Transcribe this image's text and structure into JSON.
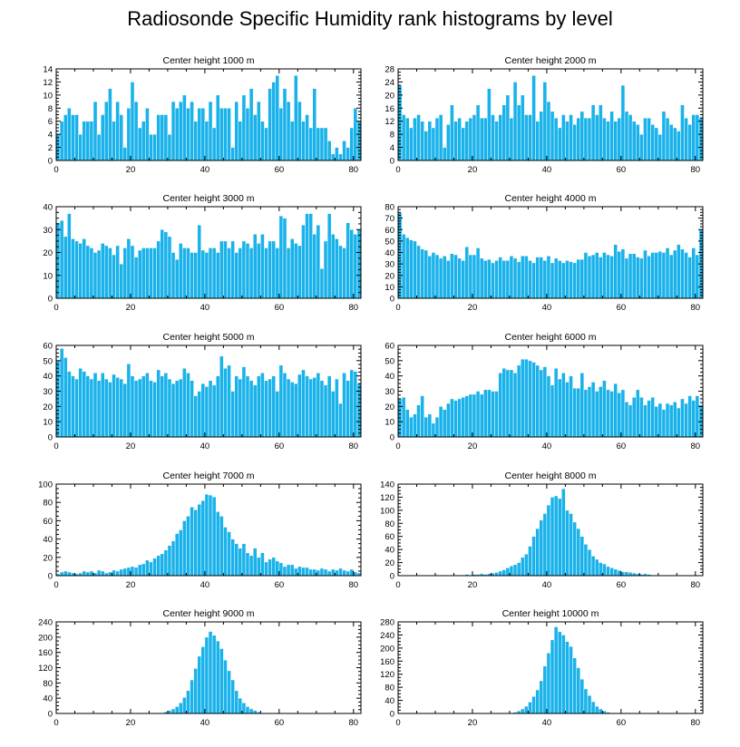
{
  "title": "Radiosonde Specific Humidity rank histograms by level",
  "colors": {
    "bar": "#1ab2ea",
    "bar_edge": "#ffffff",
    "axis": "#000000"
  },
  "chart_data": [
    {
      "type": "bar",
      "title": "Center height 1000 m",
      "xlim": [
        0,
        82
      ],
      "ylim": [
        0,
        14
      ],
      "x_ticks": [
        0,
        20,
        40,
        60,
        80
      ],
      "y_ticks": [
        0,
        2,
        4,
        6,
        8,
        10,
        12,
        14
      ],
      "values": [
        4,
        6,
        7,
        8,
        7,
        7,
        4,
        6,
        6,
        6,
        9,
        4,
        7,
        9,
        11,
        6,
        9,
        7,
        2,
        8,
        12,
        9,
        5,
        6,
        8,
        4,
        4,
        7,
        7,
        7,
        4,
        9,
        8,
        9,
        10,
        8,
        9,
        6,
        8,
        8,
        6,
        9,
        5,
        10,
        8,
        8,
        8,
        2,
        9,
        6,
        10,
        8,
        11,
        7,
        9,
        6,
        5,
        11,
        12,
        13,
        8,
        11,
        9,
        6,
        13,
        9,
        6,
        7,
        5,
        11,
        5,
        5,
        5,
        3,
        1,
        2,
        1,
        3,
        2,
        5,
        8,
        6
      ]
    },
    {
      "type": "bar",
      "title": "Center height 2000 m",
      "xlim": [
        0,
        82
      ],
      "ylim": [
        0,
        28
      ],
      "x_ticks": [
        0,
        20,
        40,
        60,
        80
      ],
      "y_ticks": [
        0,
        4,
        8,
        12,
        16,
        20,
        24,
        28
      ],
      "values": [
        23,
        14,
        13,
        10,
        13,
        14,
        12,
        9,
        12,
        10,
        13,
        14,
        4,
        11,
        17,
        12,
        13,
        10,
        12,
        13,
        14,
        17,
        13,
        13,
        22,
        14,
        12,
        14,
        17,
        20,
        13,
        24,
        17,
        20,
        14,
        14,
        26,
        12,
        15,
        24,
        18,
        15,
        13,
        10,
        14,
        12,
        14,
        11,
        13,
        15,
        13,
        13,
        17,
        14,
        17,
        13,
        12,
        15,
        12,
        13,
        23,
        15,
        14,
        12,
        11,
        8,
        13,
        13,
        11,
        10,
        8,
        15,
        13,
        11,
        10,
        9,
        17,
        13,
        11,
        14,
        14,
        13
      ]
    },
    {
      "type": "bar",
      "title": "Center height 3000 m",
      "xlim": [
        0,
        82
      ],
      "ylim": [
        0,
        40
      ],
      "x_ticks": [
        0,
        20,
        40,
        60,
        80
      ],
      "y_ticks": [
        0,
        10,
        20,
        30,
        40
      ],
      "values": [
        33,
        34,
        27,
        37,
        26,
        25,
        24,
        26,
        23,
        22,
        20,
        21,
        24,
        23,
        22,
        19,
        23,
        15,
        22,
        26,
        23,
        18,
        21,
        22,
        22,
        22,
        22,
        25,
        30,
        29,
        27,
        20,
        17,
        24,
        22,
        22,
        20,
        20,
        32,
        21,
        20,
        22,
        22,
        20,
        25,
        25,
        22,
        25,
        20,
        22,
        25,
        24,
        22,
        28,
        24,
        28,
        22,
        25,
        25,
        22,
        36,
        35,
        22,
        26,
        24,
        23,
        32,
        37,
        37,
        28,
        32,
        13,
        25,
        37,
        28,
        26,
        23,
        22,
        33,
        30,
        28,
        30
      ]
    },
    {
      "type": "bar",
      "title": "Center height 4000 m",
      "xlim": [
        0,
        82
      ],
      "ylim": [
        0,
        80
      ],
      "x_ticks": [
        0,
        20,
        40,
        60,
        80
      ],
      "y_ticks": [
        0,
        10,
        20,
        30,
        40,
        50,
        60,
        70,
        80
      ],
      "values": [
        75,
        56,
        53,
        51,
        50,
        46,
        43,
        42,
        37,
        40,
        38,
        35,
        37,
        33,
        39,
        38,
        35,
        33,
        45,
        38,
        38,
        44,
        35,
        33,
        34,
        31,
        33,
        36,
        33,
        33,
        37,
        35,
        32,
        37,
        37,
        33,
        31,
        36,
        36,
        33,
        37,
        31,
        35,
        33,
        31,
        33,
        32,
        31,
        34,
        34,
        40,
        37,
        38,
        40,
        36,
        40,
        38,
        37,
        47,
        41,
        43,
        35,
        39,
        39,
        36,
        35,
        42,
        37,
        40,
        40,
        41,
        40,
        44,
        38,
        42,
        47,
        43,
        40,
        36,
        44,
        38,
        60
      ]
    },
    {
      "type": "bar",
      "title": "Center height 5000 m",
      "xlim": [
        0,
        82
      ],
      "ylim": [
        0,
        60
      ],
      "x_ticks": [
        0,
        20,
        40,
        60,
        80
      ],
      "y_ticks": [
        0,
        10,
        20,
        30,
        40,
        50,
        60
      ],
      "values": [
        50,
        58,
        52,
        43,
        40,
        38,
        45,
        43,
        40,
        38,
        42,
        37,
        42,
        38,
        36,
        41,
        39,
        38,
        35,
        48,
        40,
        37,
        38,
        40,
        42,
        37,
        36,
        44,
        40,
        42,
        38,
        35,
        37,
        38,
        45,
        42,
        37,
        27,
        30,
        35,
        33,
        37,
        34,
        40,
        53,
        45,
        47,
        30,
        40,
        38,
        46,
        40,
        37,
        34,
        40,
        42,
        37,
        38,
        40,
        30,
        47,
        42,
        38,
        36,
        35,
        41,
        44,
        40,
        38,
        39,
        42,
        37,
        34,
        40,
        30,
        38,
        22,
        42,
        37,
        44,
        43,
        35
      ]
    },
    {
      "type": "bar",
      "title": "Center height 6000 m",
      "xlim": [
        0,
        82
      ],
      "ylim": [
        0,
        60
      ],
      "x_ticks": [
        0,
        20,
        40,
        60,
        80
      ],
      "y_ticks": [
        0,
        10,
        20,
        30,
        40,
        50,
        60
      ],
      "values": [
        25,
        26,
        18,
        13,
        15,
        21,
        27,
        13,
        15,
        9,
        13,
        20,
        18,
        22,
        25,
        24,
        25,
        26,
        27,
        28,
        28,
        30,
        28,
        31,
        31,
        30,
        30,
        42,
        45,
        44,
        44,
        42,
        47,
        51,
        51,
        50,
        49,
        47,
        44,
        46,
        40,
        34,
        45,
        38,
        42,
        36,
        40,
        32,
        32,
        42,
        31,
        33,
        36,
        30,
        33,
        37,
        31,
        30,
        35,
        29,
        31,
        23,
        21,
        26,
        31,
        26,
        21,
        24,
        26,
        20,
        22,
        18,
        22,
        21,
        23,
        19,
        25,
        22,
        27,
        24,
        27,
        21
      ]
    },
    {
      "type": "bar",
      "title": "Center height 7000 m",
      "xlim": [
        0,
        82
      ],
      "ylim": [
        0,
        100
      ],
      "x_ticks": [
        0,
        20,
        40,
        60,
        80
      ],
      "y_ticks": [
        0,
        20,
        40,
        60,
        80,
        100
      ],
      "values": [
        2,
        4,
        5,
        4,
        3,
        2,
        3,
        5,
        4,
        5,
        3,
        6,
        5,
        3,
        4,
        6,
        5,
        7,
        8,
        9,
        10,
        9,
        12,
        13,
        17,
        15,
        19,
        22,
        24,
        28,
        33,
        38,
        46,
        50,
        60,
        65,
        75,
        72,
        78,
        82,
        89,
        88,
        86,
        70,
        65,
        53,
        48,
        40,
        35,
        30,
        35,
        25,
        22,
        30,
        20,
        25,
        15,
        18,
        20,
        16,
        14,
        10,
        12,
        12,
        8,
        10,
        9,
        9,
        7,
        7,
        6,
        8,
        7,
        5,
        7,
        6,
        8,
        6,
        5,
        7,
        4,
        3
      ]
    },
    {
      "type": "bar",
      "title": "Center height 8000 m",
      "xlim": [
        0,
        82
      ],
      "ylim": [
        0,
        140
      ],
      "x_ticks": [
        0,
        20,
        40,
        60,
        80
      ],
      "y_ticks": [
        0,
        20,
        40,
        60,
        80,
        100,
        120,
        140
      ],
      "values": [
        0,
        0,
        0,
        0,
        0,
        0,
        0,
        0,
        0,
        0,
        0,
        0,
        0,
        0,
        1,
        0,
        1,
        1,
        2,
        1,
        2,
        2,
        3,
        2,
        3,
        4,
        5,
        7,
        9,
        12,
        15,
        17,
        20,
        28,
        33,
        45,
        60,
        72,
        85,
        95,
        108,
        120,
        122,
        118,
        133,
        100,
        95,
        82,
        72,
        60,
        48,
        40,
        30,
        25,
        20,
        18,
        14,
        12,
        10,
        8,
        6,
        6,
        5,
        4,
        3,
        2,
        3,
        2,
        1,
        1,
        1,
        1,
        0,
        1,
        0,
        0,
        0,
        0,
        0,
        0,
        0,
        0
      ]
    },
    {
      "type": "bar",
      "title": "Center height 9000 m",
      "xlim": [
        0,
        82
      ],
      "ylim": [
        0,
        240
      ],
      "x_ticks": [
        0,
        20,
        40,
        60,
        80
      ],
      "y_ticks": [
        0,
        40,
        80,
        120,
        160,
        200,
        240
      ],
      "values": [
        0,
        0,
        0,
        0,
        0,
        0,
        0,
        0,
        0,
        0,
        0,
        0,
        0,
        0,
        0,
        0,
        0,
        0,
        0,
        0,
        0,
        0,
        0,
        0,
        0,
        0,
        0,
        1,
        2,
        4,
        8,
        12,
        18,
        28,
        42,
        60,
        88,
        118,
        150,
        175,
        200,
        215,
        205,
        190,
        170,
        140,
        112,
        88,
        60,
        40,
        28,
        18,
        12,
        8,
        4,
        2,
        1,
        1,
        0,
        0,
        0,
        0,
        0,
        0,
        0,
        0,
        0,
        0,
        0,
        0,
        0,
        0,
        0,
        0,
        0,
        0,
        0,
        0,
        0,
        0,
        0,
        0
      ]
    },
    {
      "type": "bar",
      "title": "Center height 10000 m",
      "xlim": [
        0,
        82
      ],
      "ylim": [
        0,
        280
      ],
      "x_ticks": [
        0,
        20,
        40,
        60,
        80
      ],
      "y_ticks": [
        0,
        40,
        80,
        120,
        160,
        200,
        240,
        280
      ],
      "values": [
        0,
        0,
        0,
        0,
        0,
        0,
        0,
        0,
        0,
        0,
        0,
        0,
        0,
        0,
        0,
        0,
        0,
        0,
        0,
        0,
        0,
        0,
        0,
        0,
        0,
        0,
        0,
        0,
        0,
        1,
        2,
        4,
        8,
        14,
        22,
        35,
        52,
        72,
        100,
        145,
        185,
        225,
        265,
        250,
        240,
        220,
        205,
        170,
        140,
        105,
        75,
        55,
        36,
        22,
        14,
        8,
        4,
        2,
        1,
        1,
        0,
        0,
        0,
        0,
        0,
        0,
        0,
        0,
        0,
        0,
        0,
        0,
        0,
        0,
        0,
        0,
        0,
        0,
        0,
        0,
        0,
        0
      ]
    }
  ]
}
